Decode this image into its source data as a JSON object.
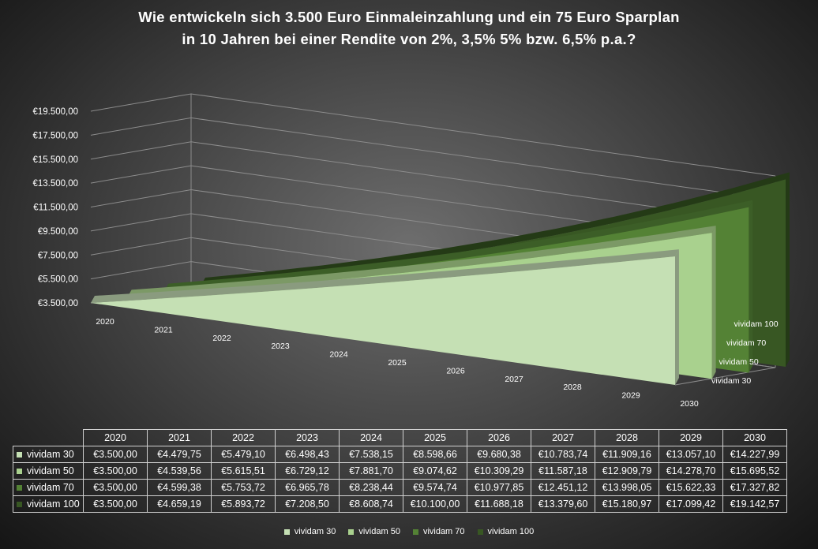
{
  "title_lines": [
    "Wie entwickeln sich 3.500 Euro Einmaleinzahlung und ein 75 Euro Sparplan",
    "in 10 Jahren bei einer Rendite von 2%, 3,5% 5% bzw. 6,5% p.a.?"
  ],
  "chart_data": {
    "type": "area",
    "title": "Wie entwickeln sich 3.500 Euro Einmaleinzahlung und ein 75 Euro Sparplan in 10 Jahren bei einer Rendite von 2%, 3,5% 5% bzw. 6,5% p.a.?",
    "categories": [
      "2020",
      "2021",
      "2022",
      "2023",
      "2024",
      "2025",
      "2026",
      "2027",
      "2028",
      "2029",
      "2030"
    ],
    "ylim": [
      3500,
      19500
    ],
    "y_ticks": [
      "€19.500,00",
      "€17.500,00",
      "€15.500,00",
      "€13.500,00",
      "€11.500,00",
      "€9.500,00",
      "€7.500,00",
      "€5.500,00",
      "€3.500,00"
    ],
    "grid": true,
    "legend_position": "bottom",
    "series": [
      {
        "name": "vividam 30",
        "color": "#c5e0b4",
        "values": [
          3500.0,
          4479.75,
          5479.1,
          6498.43,
          7538.15,
          8598.66,
          9680.38,
          10783.74,
          11909.16,
          13057.1,
          14227.99
        ],
        "labels": [
          "€3.500,00",
          "€4.479,75",
          "€5.479,10",
          "€6.498,43",
          "€7.538,15",
          "€8.598,66",
          "€9.680,38",
          "€10.783,74",
          "€11.909,16",
          "€13.057,10",
          "€14.227,99"
        ]
      },
      {
        "name": "vividam 50",
        "color": "#a9d18e",
        "values": [
          3500.0,
          4539.56,
          5615.51,
          6729.12,
          7881.7,
          9074.62,
          10309.29,
          11587.18,
          12909.79,
          14278.7,
          15695.52
        ],
        "labels": [
          "€3.500,00",
          "€4.539,56",
          "€5.615,51",
          "€6.729,12",
          "€7.881,70",
          "€9.074,62",
          "€10.309,29",
          "€11.587,18",
          "€12.909,79",
          "€14.278,70",
          "€15.695,52"
        ]
      },
      {
        "name": "vividam 70",
        "color": "#548235",
        "values": [
          3500.0,
          4599.38,
          5753.72,
          6965.78,
          8238.44,
          9574.74,
          10977.85,
          12451.12,
          13998.05,
          15622.33,
          17327.82
        ],
        "labels": [
          "€3.500,00",
          "€4.599,38",
          "€5.753,72",
          "€6.965,78",
          "€8.238,44",
          "€9.574,74",
          "€10.977,85",
          "€12.451,12",
          "€13.998,05",
          "€15.622,33",
          "€17.327,82"
        ]
      },
      {
        "name": "vividam 100",
        "color": "#385723",
        "values": [
          3500.0,
          4659.19,
          5893.72,
          7208.5,
          8608.74,
          10100.0,
          11688.18,
          13379.6,
          15180.97,
          17099.42,
          19142.57
        ],
        "labels": [
          "€3.500,00",
          "€4.659,19",
          "€5.893,72",
          "€7.208,50",
          "€8.608,74",
          "€10.100,00",
          "€11.688,18",
          "€13.379,60",
          "€15.180,97",
          "€17.099,42",
          "€19.142,57"
        ]
      }
    ]
  }
}
